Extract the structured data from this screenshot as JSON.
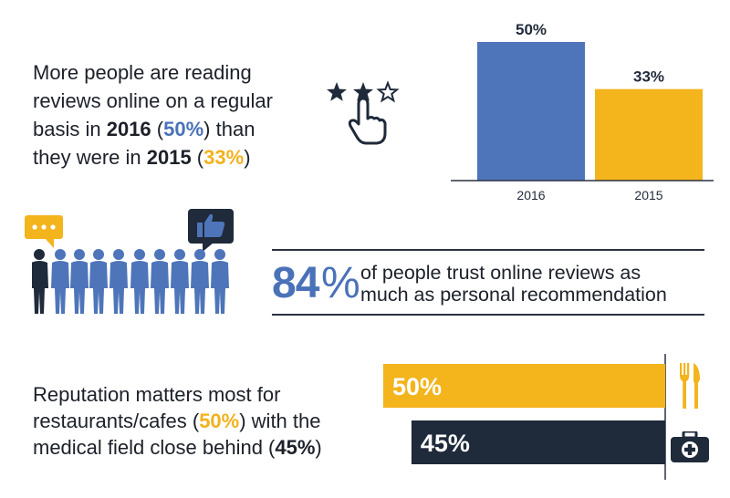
{
  "top_text": {
    "line1": "More people are reading",
    "line2": "reviews online on a regular",
    "line3_pre": "basis in ",
    "year_2016": "2016",
    "line3_open": " (",
    "pct_2016": "50%",
    "line3_post": ") than",
    "line4_pre": "they were in ",
    "year_2015": "2015",
    "line4_open": " (",
    "pct_2015": "33%",
    "line4_post": ")"
  },
  "trust": {
    "number": "84",
    "percent_sign": "%",
    "line1": "of people trust online reviews as",
    "line2": "much as personal recommendation"
  },
  "bottom_text": {
    "line1": "Reputation matters most for",
    "line2_pre": "restaurants/cafes (",
    "pct_restaurants": "50%",
    "line2_post": ") with the",
    "line3_pre": "medical field close behind (",
    "pct_medical": "45%",
    "line3_post": ")"
  },
  "icons": [
    "star-icon",
    "star-outline-icon",
    "pointing-hand-icon",
    "speech-bubble-icon",
    "thumbs-up-icon",
    "people-silhouettes",
    "fork-knife-icon",
    "medical-kit-icon"
  ],
  "colors": {
    "blue": "#4e75ba",
    "gold": "#f3b41c",
    "navy": "#1f2a3a"
  },
  "chart_data": [
    {
      "type": "bar",
      "categories": [
        "2016",
        "2015"
      ],
      "values": [
        50,
        33
      ],
      "value_labels": [
        "50%",
        "33%"
      ],
      "colors": [
        "#4e75ba",
        "#f3b41c"
      ],
      "ylim": [
        0,
        50
      ]
    },
    {
      "type": "bar",
      "orientation": "horizontal",
      "values": [
        50,
        45
      ],
      "value_labels": [
        "50%",
        "45%"
      ],
      "colors": [
        "#f3b41c",
        "#1f2a3a"
      ],
      "icons": [
        "fork-knife-icon",
        "medical-kit-icon"
      ]
    }
  ]
}
